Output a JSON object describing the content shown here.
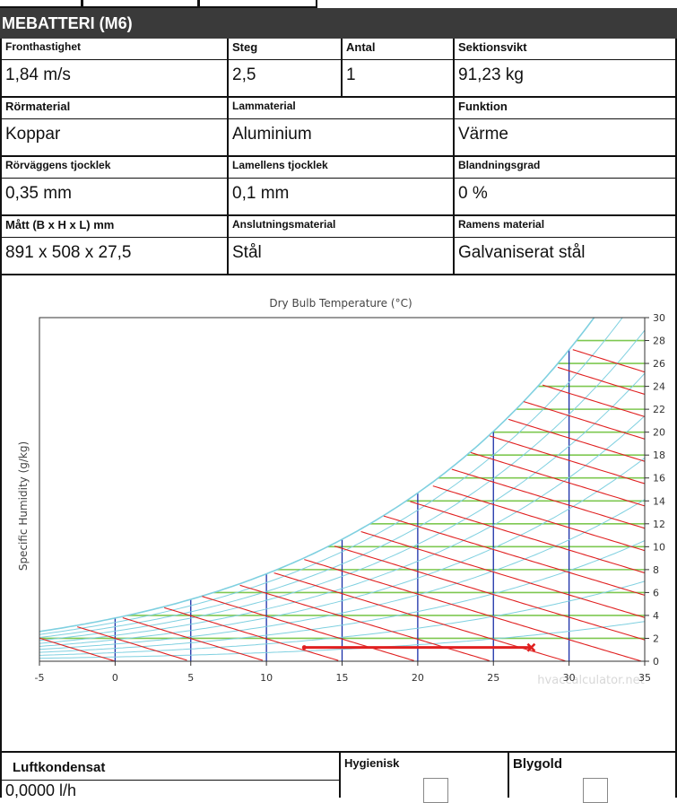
{
  "header": {
    "title": "MEBATTERI (M6)"
  },
  "rows": [
    [
      {
        "label": "Fronthastighet",
        "value": "1,84 m/s"
      },
      {
        "label": "Steg",
        "value": "2,5"
      },
      {
        "label": "Antal",
        "value": "1"
      },
      {
        "label": "Sektionsvikt",
        "value": "91,23 kg"
      }
    ],
    [
      {
        "label": "Rörmaterial",
        "value": "Koppar"
      },
      {
        "label": "Lammaterial",
        "value": "Aluminium"
      },
      {
        "label": "Funktion",
        "value": "Värme"
      }
    ],
    [
      {
        "label": "Rörväggens tjocklek",
        "value": "0,35 mm"
      },
      {
        "label": "Lamellens tjocklek",
        "value": "0,1 mm"
      },
      {
        "label": "Blandningsgrad",
        "value": "0 %"
      }
    ],
    [
      {
        "label": "Mått (B x H x L) mm",
        "value": "891 x 508 x 27,5"
      },
      {
        "label": "Anslutningsmaterial",
        "value": "Stål"
      },
      {
        "label": "Ramens material",
        "value": "Galvaniserat stål"
      }
    ]
  ],
  "chart_data": {
    "type": "psychrometric",
    "title": "Dry Bulb Temperature (°C)",
    "ylabel": "Specific Humidity (g/kg)",
    "watermark": "hvaccalculator.net",
    "xlim": [
      -5,
      35
    ],
    "ylim": [
      0,
      30
    ],
    "x_ticks": [
      "-5",
      "0",
      "5",
      "10",
      "15",
      "20",
      "25",
      "30",
      "35"
    ],
    "y_ticks": [
      "0",
      "2",
      "4",
      "6",
      "8",
      "10",
      "12",
      "14",
      "16",
      "18",
      "20",
      "22",
      "24",
      "26",
      "28",
      "30"
    ],
    "process_line": {
      "color": "#e02020",
      "start": {
        "t": 12.5,
        "x": 1.2
      },
      "end": {
        "t": 27.5,
        "x": 1.2
      }
    },
    "colors": {
      "saturation": "#8fd8e6",
      "rh": "#7fd0e0",
      "enthalpy": "#e02020",
      "humidity": "#7ec850",
      "drybulb": "#1a2fa8"
    }
  },
  "bottom": {
    "luft_label": "Luftkondensat",
    "luft_value": "0,0000 l/h",
    "hyg_label": "Hygienisk",
    "bly_label": "Blygold"
  }
}
